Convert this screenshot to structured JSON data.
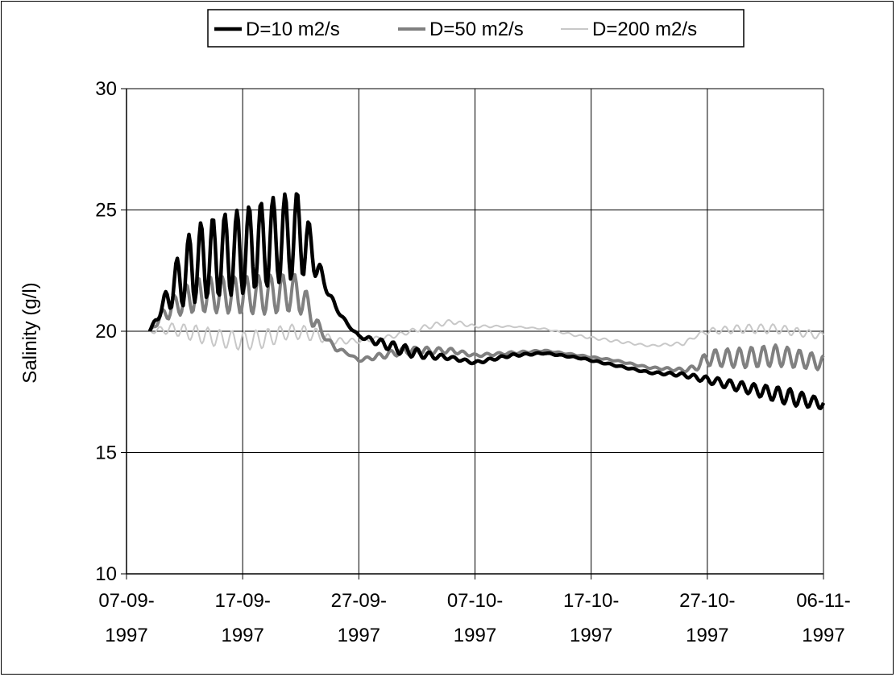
{
  "chart_data": {
    "type": "line",
    "title": "",
    "xlabel": "",
    "ylabel": "Salinity (g/l)",
    "ylim": [
      10,
      30
    ],
    "xlim": [
      "1997-09-07",
      "1997-11-06"
    ],
    "y_ticks": [
      "10",
      "15",
      "20",
      "25",
      "30"
    ],
    "x_ticks": [
      {
        "date": "1997-09-07",
        "line1": "07-09-",
        "line2": "1997"
      },
      {
        "date": "1997-09-17",
        "line1": "17-09-",
        "line2": "1997"
      },
      {
        "date": "1997-09-27",
        "line1": "27-09-",
        "line2": "1997"
      },
      {
        "date": "1997-10-07",
        "line1": "07-10-",
        "line2": "1997"
      },
      {
        "date": "1997-10-17",
        "line1": "17-10-",
        "line2": "1997"
      },
      {
        "date": "1997-10-27",
        "line1": "27-10-",
        "line2": "1997"
      },
      {
        "date": "1997-11-06",
        "line1": "06-11-",
        "line2": "1997"
      }
    ],
    "grid": true,
    "legend_position": "top",
    "series": [
      {
        "name": "D=10 m2/s",
        "color": "#000000",
        "line_width": "thick",
        "x": [
          "1997-09-09",
          "1997-09-10",
          "1997-09-11",
          "1997-09-12",
          "1997-09-13",
          "1997-09-14",
          "1997-09-15",
          "1997-09-16",
          "1997-09-17",
          "1997-09-18",
          "1997-09-19",
          "1997-09-20",
          "1997-09-21",
          "1997-09-22",
          "1997-09-23",
          "1997-09-24",
          "1997-09-25",
          "1997-09-26",
          "1997-09-27",
          "1997-09-29",
          "1997-10-01",
          "1997-10-03",
          "1997-10-05",
          "1997-10-07",
          "1997-10-10",
          "1997-10-13",
          "1997-10-16",
          "1997-10-19",
          "1997-10-22",
          "1997-10-25",
          "1997-10-28",
          "1997-10-31",
          "1997-11-03",
          "1997-11-06"
        ],
        "y": [
          20.0,
          20.9,
          21.8,
          22.4,
          22.8,
          23.0,
          23.1,
          23.2,
          23.3,
          23.5,
          23.6,
          23.8,
          23.9,
          24.0,
          23.2,
          22.0,
          21.0,
          20.3,
          19.8,
          19.5,
          19.2,
          19.0,
          18.9,
          18.7,
          19.0,
          19.1,
          18.9,
          18.6,
          18.3,
          18.2,
          17.9,
          17.6,
          17.3,
          17.0
        ],
        "oscillation": [
          0.0,
          0.3,
          1.0,
          1.6,
          1.8,
          1.8,
          1.8,
          1.8,
          1.8,
          1.8,
          1.8,
          1.8,
          1.8,
          1.8,
          0.8,
          0.2,
          0.1,
          0.05,
          0.05,
          0.2,
          0.3,
          0.2,
          0.1,
          0.1,
          0.1,
          0.05,
          0.05,
          0.05,
          0.05,
          0.1,
          0.2,
          0.25,
          0.35,
          0.2
        ]
      },
      {
        "name": "D=50 m2/s",
        "color": "#808080",
        "line_width": "medium",
        "x": [
          "1997-09-09",
          "1997-09-10",
          "1997-09-11",
          "1997-09-12",
          "1997-09-13",
          "1997-09-15",
          "1997-09-17",
          "1997-09-19",
          "1997-09-21",
          "1997-09-22",
          "1997-09-23",
          "1997-09-24",
          "1997-09-25",
          "1997-09-26",
          "1997-09-27",
          "1997-09-29",
          "1997-10-01",
          "1997-10-03",
          "1997-10-05",
          "1997-10-07",
          "1997-10-10",
          "1997-10-13",
          "1997-10-16",
          "1997-10-19",
          "1997-10-22",
          "1997-10-25",
          "1997-10-26",
          "1997-10-27",
          "1997-10-30",
          "1997-11-02",
          "1997-11-06"
        ],
        "y": [
          20.0,
          20.6,
          21.0,
          21.3,
          21.5,
          21.5,
          21.5,
          21.5,
          21.6,
          21.5,
          20.6,
          19.8,
          19.3,
          19.1,
          18.8,
          19.0,
          19.2,
          19.2,
          19.2,
          19.0,
          19.1,
          19.2,
          19.0,
          18.8,
          18.5,
          18.4,
          18.5,
          18.9,
          18.9,
          19.0,
          18.7
        ],
        "oscillation": [
          0.0,
          0.3,
          0.5,
          0.7,
          0.8,
          0.8,
          0.8,
          0.8,
          0.8,
          0.8,
          0.4,
          0.1,
          0.1,
          0.05,
          0.05,
          0.15,
          0.2,
          0.2,
          0.15,
          0.1,
          0.1,
          0.05,
          0.05,
          0.05,
          0.05,
          0.1,
          0.15,
          0.4,
          0.45,
          0.45,
          0.3
        ]
      },
      {
        "name": "D=200 m2/s",
        "color": "#c8c8c8",
        "line_width": "thin",
        "x": [
          "1997-09-09",
          "1997-09-11",
          "1997-09-13",
          "1997-09-15",
          "1997-09-17",
          "1997-09-19",
          "1997-09-21",
          "1997-09-23",
          "1997-09-25",
          "1997-09-27",
          "1997-09-30",
          "1997-10-03",
          "1997-10-05",
          "1997-10-07",
          "1997-10-10",
          "1997-10-13",
          "1997-10-16",
          "1997-10-19",
          "1997-10-22",
          "1997-10-25",
          "1997-10-26",
          "1997-10-27",
          "1997-10-30",
          "1997-11-02",
          "1997-11-06"
        ],
        "y": [
          20.0,
          20.1,
          19.9,
          19.7,
          19.6,
          19.7,
          20.0,
          19.9,
          19.6,
          19.6,
          19.8,
          20.2,
          20.4,
          20.2,
          20.2,
          20.1,
          19.8,
          19.6,
          19.4,
          19.5,
          19.8,
          20.0,
          20.1,
          20.1,
          19.8
        ],
        "oscillation": [
          0.1,
          0.3,
          0.4,
          0.4,
          0.4,
          0.4,
          0.3,
          0.3,
          0.15,
          0.1,
          0.1,
          0.15,
          0.15,
          0.1,
          0.05,
          0.05,
          0.1,
          0.1,
          0.05,
          0.1,
          0.1,
          0.15,
          0.2,
          0.2,
          0.15
        ]
      }
    ]
  }
}
